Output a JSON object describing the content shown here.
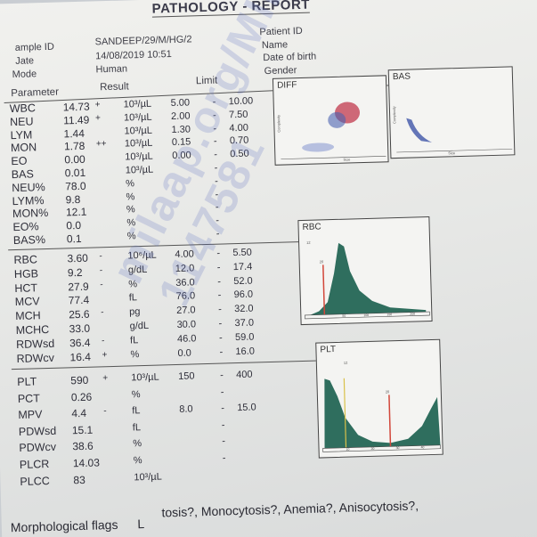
{
  "report": {
    "title": "PATHOLOGY - REPORT",
    "sample_label": "ample ID",
    "sample_value": "SANDEEP/29/M/HG/2",
    "date_label": "Jate",
    "date_value": "14/08/2019 10:51",
    "mode_label": "Mode",
    "mode_value": "Human",
    "patient_id_label": "Patient ID",
    "name_label": "Name",
    "dob_label": "Date of birth",
    "gender_label": "Gender"
  },
  "columns": {
    "parameter": "Parameter",
    "result": "Result",
    "limit": "Limit"
  },
  "rows": [
    {
      "p": "WBC",
      "v": "14.73",
      "f": "+",
      "u": "10³/µL",
      "lo": "5.00",
      "d": "-",
      "hi": "10.00"
    },
    {
      "p": "NEU",
      "v": "11.49",
      "f": "+",
      "u": "10³/µL",
      "lo": "2.00",
      "d": "-",
      "hi": "7.50"
    },
    {
      "p": "LYM",
      "v": "1.44",
      "f": "",
      "u": "10³/µL",
      "lo": "1.30",
      "d": "-",
      "hi": "4.00"
    },
    {
      "p": "MON",
      "v": "1.78",
      "f": "++",
      "u": "10³/µL",
      "lo": "0.15",
      "d": "-",
      "hi": "0.70"
    },
    {
      "p": "EO",
      "v": "0.00",
      "f": "",
      "u": "10³/µL",
      "lo": "0.00",
      "d": "-",
      "hi": "0.50"
    },
    {
      "p": "BAS",
      "v": "0.01",
      "f": "",
      "u": "10³/µL",
      "lo": "",
      "d": "-",
      "hi": ""
    },
    {
      "p": "NEU%",
      "v": "78.0",
      "f": "",
      "u": "%",
      "lo": "",
      "d": "-",
      "hi": ""
    },
    {
      "p": "LYM%",
      "v": "9.8",
      "f": "",
      "u": "%",
      "lo": "",
      "d": "-",
      "hi": ""
    },
    {
      "p": "MON%",
      "v": "12.1",
      "f": "",
      "u": "%",
      "lo": "",
      "d": "-",
      "hi": ""
    },
    {
      "p": "EO%",
      "v": "0.0",
      "f": "",
      "u": "%",
      "lo": "",
      "d": "-",
      "hi": ""
    },
    {
      "p": "BAS%",
      "v": "0.1",
      "f": "",
      "u": "%",
      "lo": "",
      "d": "-",
      "hi": ""
    },
    {
      "p": "RBC",
      "v": "3.60",
      "f": "-",
      "u": "10⁶/µL",
      "lo": "4.00",
      "d": "-",
      "hi": "5.50"
    },
    {
      "p": "HGB",
      "v": "9.2",
      "f": "-",
      "u": "g/dL",
      "lo": "12.0",
      "d": "-",
      "hi": "17.4"
    },
    {
      "p": "HCT",
      "v": "27.9",
      "f": "-",
      "u": "%",
      "lo": "36.0",
      "d": "-",
      "hi": "52.0"
    },
    {
      "p": "MCV",
      "v": "77.4",
      "f": "",
      "u": "fL",
      "lo": "76.0",
      "d": "-",
      "hi": "96.0"
    },
    {
      "p": "MCH",
      "v": "25.6",
      "f": "-",
      "u": "pg",
      "lo": "27.0",
      "d": "-",
      "hi": "32.0"
    },
    {
      "p": "MCHC",
      "v": "33.0",
      "f": "",
      "u": "g/dL",
      "lo": "30.0",
      "d": "-",
      "hi": "37.0"
    },
    {
      "p": "RDWsd",
      "v": "36.4",
      "f": "-",
      "u": "fL",
      "lo": "46.0",
      "d": "-",
      "hi": "59.0"
    },
    {
      "p": "RDWcv",
      "v": "16.4",
      "f": "+",
      "u": "%",
      "lo": "0.0",
      "d": "-",
      "hi": "16.0"
    },
    {
      "p": "PLT",
      "v": "590",
      "f": "+",
      "u": "10³/µL",
      "lo": "150",
      "d": "-",
      "hi": "400"
    },
    {
      "p": "PCT",
      "v": "0.26",
      "f": "",
      "u": "%",
      "lo": "",
      "d": "-",
      "hi": ""
    },
    {
      "p": "MPV",
      "v": "4.4",
      "f": "-",
      "u": "fL",
      "lo": "8.0",
      "d": "-",
      "hi": "15.0"
    },
    {
      "p": "PDWsd",
      "v": "15.1",
      "f": "",
      "u": "fL",
      "lo": "",
      "d": "-",
      "hi": ""
    },
    {
      "p": "PDWcv",
      "v": "38.6",
      "f": "",
      "u": "%",
      "lo": "",
      "d": "-",
      "hi": ""
    },
    {
      "p": "PLCR",
      "v": "14.03",
      "f": "",
      "u": "%",
      "lo": "",
      "d": "-",
      "hi": ""
    },
    {
      "p": "PLCC",
      "v": "83",
      "f": "",
      "u": "10³/µL",
      "lo": "",
      "d": "",
      "hi": ""
    }
  ],
  "plots": {
    "diff_label": "DIFF",
    "bas_label": "BAS",
    "rbc_label": "RBC",
    "plt_label": "PLT",
    "rbc_marker_left": "20",
    "rbc_y_top": "12",
    "plt_y_top": "12",
    "plt_marker_right": "20",
    "diff_x_axis": "Size",
    "bas_x_axis": "Size",
    "diff_y_axis": "Complexity",
    "bas_y_axis": "Complexity",
    "rbc_ticks": [
      "50",
      "100",
      "150",
      "200"
    ],
    "plt_ticks": [
      "10",
      "20",
      "30",
      "40"
    ]
  },
  "footer": {
    "flags_label": "Morphological flags",
    "flags_mark": "L",
    "flags_text": "tosis?, Monocytosis?, Anemia?, Anisocytosis?,"
  },
  "watermark": "milaap.org/MIL 1147581"
}
